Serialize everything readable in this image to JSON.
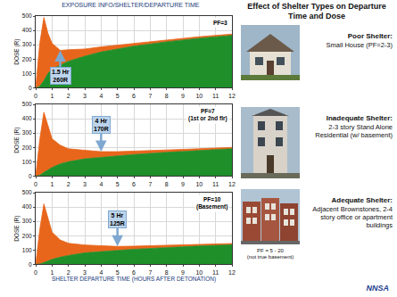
{
  "figure_title": "EXPOSURE INFO/SHELTER/DEPARTURE TIME",
  "chart_data": [
    {
      "type": "area",
      "stacked": true,
      "grid": true,
      "title": "PF=3",
      "x": [
        0,
        0.25,
        0.5,
        0.75,
        1,
        1.5,
        2,
        3,
        4,
        5,
        6,
        8,
        10,
        12
      ],
      "series": [
        {
          "color": "#1f8f2a",
          "values": [
            0,
            10,
            50,
            100,
            130,
            160,
            185,
            220,
            250,
            270,
            290,
            320,
            345,
            365
          ]
        },
        {
          "color": "#e8661c",
          "values": [
            0,
            300,
            440,
            280,
            180,
            100,
            80,
            50,
            35,
            27,
            22,
            15,
            11,
            9
          ]
        }
      ],
      "xlim": [
        0,
        12
      ],
      "xticks": [
        0,
        1,
        2,
        3,
        4,
        5,
        6,
        7,
        8,
        9,
        10,
        11,
        12
      ],
      "ylim": [
        0,
        500
      ],
      "yticks": [
        0,
        100,
        200,
        300,
        400,
        500
      ],
      "y_label": "DOSE (R)",
      "annotations": [
        {
          "x": 1.5,
          "y": 260,
          "text": "1.5 Hr\n260R"
        }
      ]
    },
    {
      "type": "area",
      "stacked": true,
      "grid": true,
      "title": "PF=7\n(1st or 2nd flr)",
      "x": [
        0,
        0.25,
        0.5,
        0.75,
        1,
        1.5,
        2,
        3,
        4,
        5,
        6,
        8,
        10,
        12
      ],
      "series": [
        {
          "color": "#1f8f2a",
          "values": [
            0,
            5,
            25,
            45,
            60,
            85,
            100,
            120,
            130,
            140,
            150,
            165,
            178,
            190
          ]
        },
        {
          "color": "#e8661c",
          "values": [
            0,
            250,
            420,
            300,
            200,
            130,
            90,
            60,
            40,
            30,
            25,
            17,
            12,
            10
          ]
        }
      ],
      "xlim": [
        0,
        12
      ],
      "xticks": [
        0,
        1,
        2,
        3,
        4,
        5,
        6,
        7,
        8,
        9,
        10,
        11,
        12
      ],
      "ylim": [
        0,
        500
      ],
      "yticks": [
        0,
        100,
        200,
        300,
        400,
        500
      ],
      "y_label": "DOSE (R)",
      "annotations": [
        {
          "x": 4,
          "y": 170,
          "text": "4 Hr\n170R"
        }
      ]
    },
    {
      "type": "area",
      "stacked": true,
      "grid": true,
      "title": "PF=10\n(Basement)",
      "x": [
        0,
        0.25,
        0.5,
        0.75,
        1,
        1.5,
        2,
        3,
        4,
        5,
        6,
        8,
        10,
        12
      ],
      "series": [
        {
          "color": "#1f8f2a",
          "values": [
            0,
            3,
            12,
            25,
            35,
            50,
            62,
            80,
            90,
            97,
            105,
            118,
            128,
            136
          ]
        },
        {
          "color": "#e8661c",
          "values": [
            0,
            240,
            410,
            290,
            190,
            120,
            85,
            55,
            38,
            28,
            22,
            15,
            11,
            9
          ]
        }
      ],
      "xlim": [
        0,
        12
      ],
      "xticks": [
        0,
        1,
        2,
        3,
        4,
        5,
        6,
        7,
        8,
        9,
        10,
        11,
        12
      ],
      "ylim": [
        0,
        500
      ],
      "yticks": [
        0,
        100,
        200,
        300,
        400,
        500
      ],
      "y_label": "DOSE (R)",
      "x_label": "SHELTER DEPARTURE TIME (HOURS AFTER DETONATION)",
      "annotations": [
        {
          "x": 5,
          "y": 125,
          "text": "5 Hr\n125R"
        }
      ]
    }
  ],
  "side_panel": {
    "title": "Effect of Shelter Types on Departure Time and Dose",
    "items": [
      {
        "label": "Poor Shelter:",
        "text": "Small House (PF=2-3)"
      },
      {
        "label": "Inadequate Shelter:",
        "text": "2-3 story Stand Alone Residential (w/ basement)"
      },
      {
        "label": "Adequate Shelter:",
        "text": "Adjacent Brownstones, 2-4 story office or apartment buildings",
        "footnote": "PF = 5 - 20\n(not true basement)"
      }
    ],
    "logo": "NNSA"
  }
}
